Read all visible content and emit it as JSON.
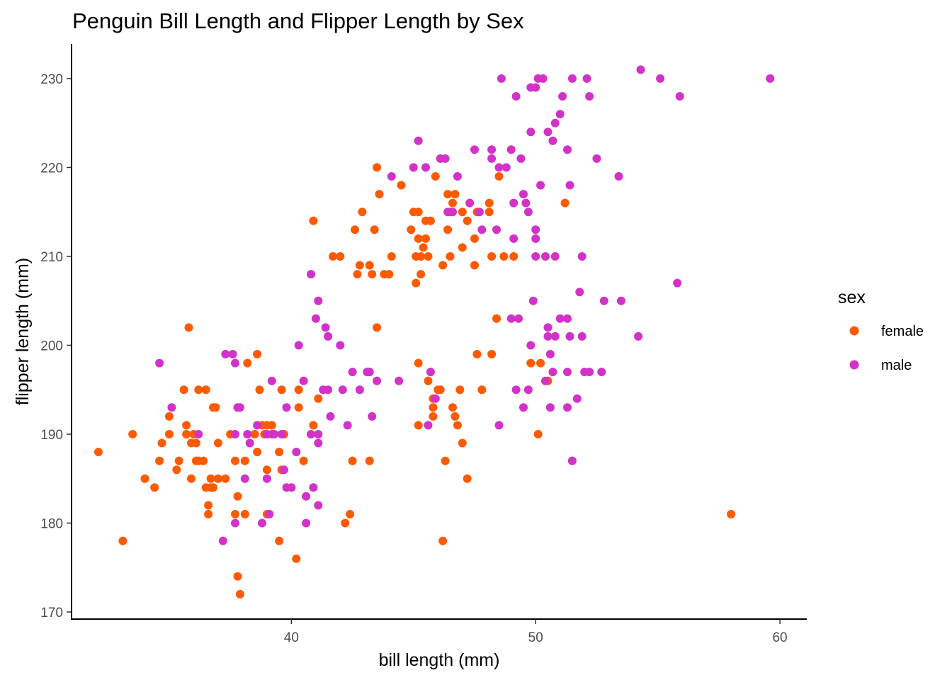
{
  "colors": {
    "female": "#FF5A00",
    "male": "#D232C8"
  },
  "chart_data": {
    "type": "scatter",
    "title": "Penguin Bill Length and Flipper Length by Sex",
    "xlabel": "bill length (mm)",
    "ylabel": "flipper length (mm)",
    "xlim": [
      31,
      61.1
    ],
    "ylim": [
      169.2,
      233.9
    ],
    "x_ticks": [
      40,
      50,
      60
    ],
    "x_tick_labels": [
      "40",
      "50",
      "60"
    ],
    "y_ticks": [
      170,
      180,
      190,
      200,
      210,
      220,
      230
    ],
    "y_tick_labels": [
      "170",
      "180",
      "190",
      "200",
      "210",
      "220",
      "230"
    ],
    "grid": false,
    "legend": {
      "title": "sex",
      "position": "right"
    },
    "series": [
      {
        "name": "female",
        "color": "#FF5A00",
        "points": [
          [
            32.1,
            188
          ],
          [
            33.1,
            178
          ],
          [
            33.5,
            190
          ],
          [
            34.0,
            185
          ],
          [
            34.4,
            184
          ],
          [
            34.6,
            187
          ],
          [
            34.7,
            189
          ],
          [
            35.0,
            192
          ],
          [
            35.0,
            190
          ],
          [
            35.3,
            186
          ],
          [
            35.4,
            187
          ],
          [
            35.6,
            195
          ],
          [
            35.7,
            190
          ],
          [
            35.7,
            191
          ],
          [
            35.8,
            202
          ],
          [
            35.9,
            185
          ],
          [
            35.9,
            189
          ],
          [
            36.0,
            190
          ],
          [
            36.1,
            187
          ],
          [
            36.1,
            189
          ],
          [
            36.2,
            195
          ],
          [
            36.2,
            187
          ],
          [
            36.4,
            187
          ],
          [
            36.5,
            195
          ],
          [
            36.5,
            184
          ],
          [
            36.6,
            182
          ],
          [
            36.6,
            181
          ],
          [
            36.7,
            184
          ],
          [
            36.7,
            185
          ],
          [
            36.8,
            193
          ],
          [
            36.8,
            184
          ],
          [
            36.9,
            193
          ],
          [
            37.0,
            185
          ],
          [
            37.0,
            189
          ],
          [
            37.3,
            185
          ],
          [
            37.5,
            190
          ],
          [
            37.7,
            181
          ],
          [
            37.7,
            187
          ],
          [
            37.8,
            183
          ],
          [
            37.8,
            174
          ],
          [
            37.9,
            172
          ],
          [
            38.1,
            187
          ],
          [
            38.1,
            181
          ],
          [
            38.2,
            198
          ],
          [
            38.5,
            190
          ],
          [
            38.6,
            188
          ],
          [
            38.6,
            199
          ],
          [
            38.7,
            195
          ],
          [
            38.8,
            191
          ],
          [
            38.9,
            190
          ],
          [
            39.0,
            191
          ],
          [
            39.0,
            186
          ],
          [
            39.0,
            181
          ],
          [
            39.2,
            191
          ],
          [
            39.5,
            178
          ],
          [
            39.5,
            188
          ],
          [
            39.6,
            186
          ],
          [
            39.6,
            195
          ],
          [
            39.7,
            190
          ],
          [
            40.2,
            176
          ],
          [
            40.3,
            193
          ],
          [
            40.3,
            195
          ],
          [
            40.5,
            187
          ],
          [
            40.9,
            191
          ],
          [
            40.9,
            214
          ],
          [
            41.1,
            194
          ],
          [
            41.7,
            210
          ],
          [
            42.0,
            210
          ],
          [
            42.2,
            180
          ],
          [
            42.4,
            181
          ],
          [
            42.5,
            187
          ],
          [
            42.6,
            213
          ],
          [
            42.7,
            208
          ],
          [
            42.8,
            209
          ],
          [
            42.9,
            215
          ],
          [
            43.2,
            209
          ],
          [
            43.2,
            187
          ],
          [
            43.3,
            208
          ],
          [
            43.4,
            213
          ],
          [
            43.5,
            220
          ],
          [
            43.5,
            202
          ],
          [
            43.6,
            217
          ],
          [
            43.8,
            208
          ],
          [
            44.0,
            208
          ],
          [
            44.1,
            210
          ],
          [
            44.5,
            218
          ],
          [
            44.9,
            213
          ],
          [
            45.0,
            215
          ],
          [
            45.1,
            210
          ],
          [
            45.1,
            207
          ],
          [
            45.2,
            215
          ],
          [
            45.2,
            212
          ],
          [
            45.2,
            198
          ],
          [
            45.2,
            191
          ],
          [
            45.3,
            208
          ],
          [
            45.3,
            210
          ],
          [
            45.4,
            211
          ],
          [
            45.5,
            212
          ],
          [
            45.5,
            214
          ],
          [
            45.6,
            210
          ],
          [
            45.6,
            196
          ],
          [
            45.7,
            214
          ],
          [
            45.8,
            194
          ],
          [
            45.8,
            193
          ],
          [
            45.8,
            192
          ],
          [
            45.9,
            219
          ],
          [
            46.0,
            195
          ],
          [
            46.1,
            195
          ],
          [
            46.2,
            209
          ],
          [
            46.2,
            178
          ],
          [
            46.3,
            187
          ],
          [
            46.4,
            217
          ],
          [
            46.4,
            213
          ],
          [
            46.5,
            215
          ],
          [
            46.5,
            210
          ],
          [
            46.6,
            193
          ],
          [
            46.6,
            216
          ],
          [
            46.7,
            217
          ],
          [
            46.7,
            192
          ],
          [
            46.8,
            191
          ],
          [
            46.9,
            195
          ],
          [
            47.0,
            215
          ],
          [
            47.0,
            211
          ],
          [
            47.0,
            189
          ],
          [
            47.2,
            185
          ],
          [
            47.2,
            214
          ],
          [
            47.5,
            209
          ],
          [
            47.5,
            212
          ],
          [
            47.6,
            199
          ],
          [
            47.6,
            215
          ],
          [
            47.8,
            195
          ],
          [
            48.1,
            215
          ],
          [
            48.1,
            216
          ],
          [
            48.2,
            210
          ],
          [
            48.2,
            199
          ],
          [
            48.4,
            203
          ],
          [
            48.5,
            219
          ],
          [
            48.7,
            210
          ],
          [
            49.1,
            210
          ],
          [
            49.8,
            198
          ],
          [
            50.1,
            190
          ],
          [
            50.2,
            198
          ],
          [
            50.5,
            196
          ],
          [
            51.2,
            216
          ],
          [
            58.0,
            181
          ]
        ]
      },
      {
        "name": "male",
        "color": "#D232C8",
        "points": [
          [
            34.6,
            198
          ],
          [
            35.1,
            193
          ],
          [
            36.2,
            190
          ],
          [
            37.2,
            178
          ],
          [
            37.3,
            199
          ],
          [
            37.6,
            199
          ],
          [
            37.7,
            180
          ],
          [
            37.7,
            198
          ],
          [
            37.8,
            193
          ],
          [
            37.9,
            193
          ],
          [
            37.7,
            190
          ],
          [
            38.1,
            185
          ],
          [
            38.2,
            190
          ],
          [
            38.3,
            189
          ],
          [
            38.6,
            191
          ],
          [
            38.8,
            180
          ],
          [
            39.0,
            190
          ],
          [
            39.0,
            185
          ],
          [
            39.1,
            181
          ],
          [
            39.2,
            196
          ],
          [
            39.2,
            190
          ],
          [
            39.3,
            190
          ],
          [
            39.6,
            190
          ],
          [
            39.7,
            186
          ],
          [
            39.8,
            193
          ],
          [
            39.8,
            184
          ],
          [
            40.0,
            184
          ],
          [
            40.2,
            188
          ],
          [
            40.3,
            200
          ],
          [
            40.5,
            196
          ],
          [
            40.6,
            180
          ],
          [
            40.6,
            183
          ],
          [
            40.8,
            190
          ],
          [
            40.8,
            208
          ],
          [
            40.9,
            184
          ],
          [
            41.0,
            203
          ],
          [
            41.1,
            182
          ],
          [
            41.1,
            205
          ],
          [
            41.1,
            189
          ],
          [
            41.1,
            190
          ],
          [
            41.3,
            195
          ],
          [
            41.4,
            202
          ],
          [
            41.5,
            201
          ],
          [
            41.5,
            195
          ],
          [
            41.6,
            192
          ],
          [
            42.0,
            200
          ],
          [
            42.1,
            195
          ],
          [
            42.3,
            191
          ],
          [
            42.5,
            197
          ],
          [
            42.8,
            195
          ],
          [
            43.1,
            197
          ],
          [
            43.2,
            197
          ],
          [
            43.3,
            192
          ],
          [
            43.5,
            196
          ],
          [
            44.1,
            219
          ],
          [
            44.4,
            196
          ],
          [
            45.0,
            220
          ],
          [
            45.2,
            223
          ],
          [
            45.5,
            220
          ],
          [
            45.6,
            191
          ],
          [
            45.7,
            197
          ],
          [
            45.9,
            194
          ],
          [
            46.1,
            221
          ],
          [
            46.3,
            221
          ],
          [
            46.4,
            215
          ],
          [
            46.6,
            215
          ],
          [
            46.8,
            219
          ],
          [
            47.3,
            216
          ],
          [
            47.5,
            222
          ],
          [
            47.7,
            215
          ],
          [
            47.8,
            213
          ],
          [
            48.2,
            222
          ],
          [
            48.2,
            221
          ],
          [
            48.4,
            213
          ],
          [
            48.5,
            220
          ],
          [
            48.6,
            230
          ],
          [
            48.8,
            220
          ],
          [
            49.0,
            222
          ],
          [
            49.1,
            212
          ],
          [
            49.2,
            228
          ],
          [
            49.4,
            221
          ],
          [
            49.5,
            217
          ],
          [
            49.6,
            216
          ],
          [
            49.8,
            229
          ],
          [
            49.8,
            224
          ],
          [
            49.8,
            200
          ],
          [
            50.0,
            229
          ],
          [
            50.1,
            230
          ],
          [
            50.2,
            218
          ],
          [
            50.3,
            230
          ],
          [
            50.5,
            224
          ],
          [
            50.7,
            223
          ],
          [
            50.8,
            225
          ],
          [
            51.0,
            226
          ],
          [
            51.1,
            228
          ],
          [
            51.3,
            222
          ],
          [
            51.4,
            218
          ],
          [
            51.5,
            230
          ],
          [
            52.1,
            230
          ],
          [
            52.2,
            228
          ],
          [
            52.5,
            221
          ],
          [
            53.4,
            219
          ],
          [
            54.3,
            231
          ],
          [
            55.1,
            230
          ],
          [
            55.9,
            228
          ],
          [
            59.6,
            230
          ],
          [
            49.2,
            195
          ],
          [
            49.0,
            203
          ],
          [
            49.5,
            193
          ],
          [
            49.7,
            195
          ],
          [
            49.9,
            205
          ],
          [
            50.0,
            212
          ],
          [
            50.4,
            196
          ],
          [
            50.5,
            202
          ],
          [
            50.6,
            199
          ],
          [
            50.8,
            201
          ],
          [
            51.0,
            203
          ],
          [
            51.3,
            203
          ],
          [
            51.3,
            197
          ],
          [
            51.4,
            201
          ],
          [
            51.7,
            194
          ],
          [
            51.9,
            201
          ],
          [
            52.0,
            197
          ],
          [
            52.2,
            197
          ],
          [
            52.7,
            197
          ],
          [
            52.8,
            205
          ],
          [
            53.5,
            205
          ],
          [
            54.2,
            201
          ],
          [
            55.8,
            207
          ],
          [
            50.0,
            210
          ],
          [
            50.8,
            210
          ],
          [
            51.9,
            210
          ],
          [
            51.8,
            206
          ],
          [
            50.5,
            201
          ],
          [
            50.7,
            197
          ],
          [
            51.3,
            193
          ],
          [
            50.6,
            193
          ],
          [
            51.5,
            187
          ],
          [
            48.5,
            191
          ],
          [
            49.3,
            203
          ],
          [
            50.0,
            213
          ],
          [
            49.7,
            215
          ],
          [
            49.1,
            216
          ],
          [
            50.4,
            210
          ]
        ]
      }
    ]
  }
}
